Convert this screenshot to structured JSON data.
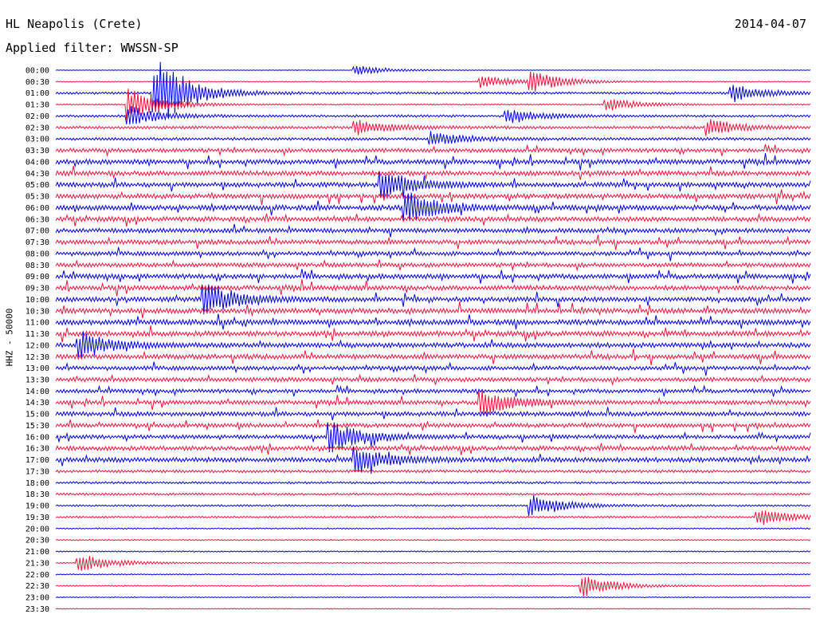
{
  "header": {
    "station": "HL Neapolis (Crete)",
    "date": "2014-04-07",
    "filter": "Applied filter: WWSSN-SP"
  },
  "channel_label": "HHZ - 50000",
  "chart_data": {
    "type": "line",
    "title": "HL Neapolis (Crete)",
    "subtitle": "Applied filter: WWSSN-SP",
    "ylabel": "HHZ - 50000",
    "xlabel": "",
    "grid": false,
    "series_colors": [
      "#0000e6",
      "#f0143c"
    ],
    "time_labels": [
      "00:00",
      "00:30",
      "01:00",
      "01:30",
      "02:00",
      "02:30",
      "03:00",
      "03:30",
      "04:00",
      "04:30",
      "05:00",
      "05:30",
      "06:00",
      "06:30",
      "07:00",
      "07:30",
      "08:00",
      "08:30",
      "09:00",
      "09:30",
      "10:00",
      "10:30",
      "11:00",
      "11:30",
      "12:00",
      "12:30",
      "13:00",
      "13:30",
      "14:00",
      "14:30",
      "15:00",
      "15:30",
      "16:00",
      "16:30",
      "17:00",
      "17:30",
      "18:00",
      "18:30",
      "19:00",
      "19:30",
      "20:00",
      "20:30",
      "21:00",
      "21:30",
      "22:00",
      "22:30",
      "23:00",
      "23:30"
    ],
    "noise_amplitude": [
      0.4,
      0.6,
      1.5,
      0.8,
      1.5,
      1.8,
      1.8,
      2.5,
      3.0,
      3.0,
      3.0,
      3.0,
      3.2,
      3.0,
      2.8,
      2.8,
      2.6,
      2.6,
      3.0,
      3.0,
      3.0,
      3.2,
      3.2,
      3.2,
      3.0,
      3.0,
      2.6,
      2.6,
      2.4,
      2.6,
      2.8,
      2.6,
      2.4,
      2.8,
      3.0,
      1.8,
      1.4,
      1.4,
      1.2,
      1.2,
      0.8,
      0.7,
      0.8,
      0.7,
      0.7,
      0.8,
      0.6,
      0.5
    ],
    "events": [
      {
        "line": 0,
        "minute": 12,
        "amplitude": 6
      },
      {
        "line": 1,
        "minute": 17,
        "amplitude": 8
      },
      {
        "line": 1,
        "minute": 19,
        "amplitude": 12
      },
      {
        "line": 2,
        "minute": 4,
        "amplitude": 50
      },
      {
        "line": 2,
        "minute": 27,
        "amplitude": 10
      },
      {
        "line": 3,
        "minute": 3,
        "amplitude": 20
      },
      {
        "line": 3,
        "minute": 22,
        "amplitude": 8
      },
      {
        "line": 4,
        "minute": 3,
        "amplitude": 12
      },
      {
        "line": 4,
        "minute": 18,
        "amplitude": 10
      },
      {
        "line": 5,
        "minute": 12,
        "amplitude": 10
      },
      {
        "line": 5,
        "minute": 26,
        "amplitude": 10
      },
      {
        "line": 6,
        "minute": 15,
        "amplitude": 10
      },
      {
        "line": 10,
        "minute": 13,
        "amplitude": 18
      },
      {
        "line": 12,
        "minute": 14,
        "amplitude": 20
      },
      {
        "line": 20,
        "minute": 6,
        "amplitude": 18
      },
      {
        "line": 24,
        "minute": 1,
        "amplitude": 16
      },
      {
        "line": 29,
        "minute": 17,
        "amplitude": 16
      },
      {
        "line": 32,
        "minute": 11,
        "amplitude": 18
      },
      {
        "line": 34,
        "minute": 12,
        "amplitude": 16
      },
      {
        "line": 38,
        "minute": 19,
        "amplitude": 14
      },
      {
        "line": 39,
        "minute": 28,
        "amplitude": 10
      },
      {
        "line": 43,
        "minute": 1,
        "amplitude": 12
      },
      {
        "line": 45,
        "minute": 21,
        "amplitude": 14
      }
    ]
  }
}
